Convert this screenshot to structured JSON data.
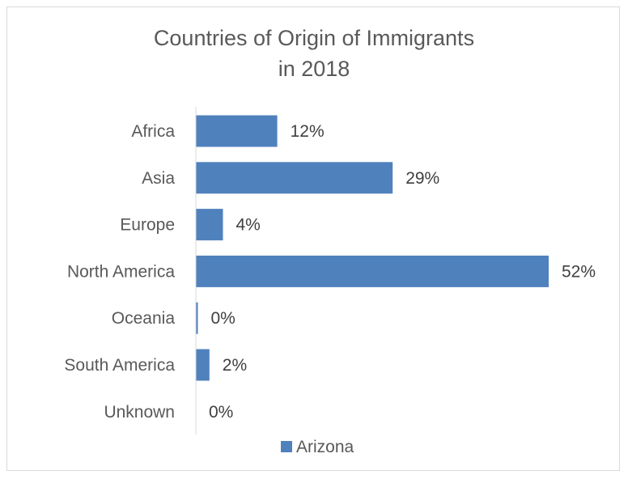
{
  "chart_data": {
    "type": "bar",
    "orientation": "horizontal",
    "title": "Countries of Origin of Immigrants",
    "subtitle": "in 2018",
    "categories": [
      "Africa",
      "Asia",
      "Europe",
      "North America",
      "Oceania",
      "South America",
      "Unknown"
    ],
    "series": [
      {
        "name": "Arizona",
        "color": "#4f81bd",
        "values": [
          0.12,
          0.29,
          0.04,
          0.52,
          0.003,
          0.02,
          0.0
        ],
        "data_labels": [
          "12%",
          "29%",
          "4%",
          "52%",
          "0%",
          "2%",
          "0%"
        ]
      }
    ],
    "xlim": [
      0,
      0.52
    ],
    "grid": false,
    "legend": "bottom"
  }
}
